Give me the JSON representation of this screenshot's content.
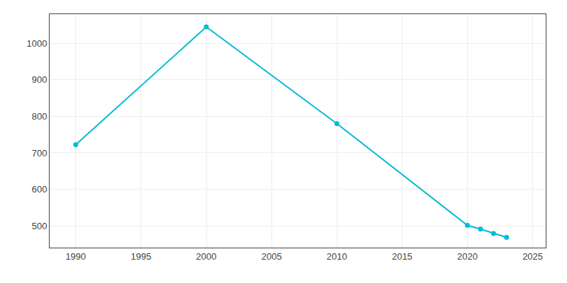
{
  "chart_data": {
    "type": "line",
    "x": [
      1990,
      2000,
      2010,
      2020,
      2021,
      2022,
      2023
    ],
    "values": [
      722,
      1045,
      780,
      501,
      491,
      479,
      468
    ],
    "color": "#00BCD4",
    "marker": "circle",
    "xlim": [
      1988,
      2026
    ],
    "ylim": [
      440,
      1080
    ],
    "xticks": [
      1990,
      1995,
      2000,
      2005,
      2010,
      2015,
      2020,
      2025
    ],
    "yticks": [
      500,
      600,
      700,
      800,
      900,
      1000
    ],
    "grid": true
  }
}
